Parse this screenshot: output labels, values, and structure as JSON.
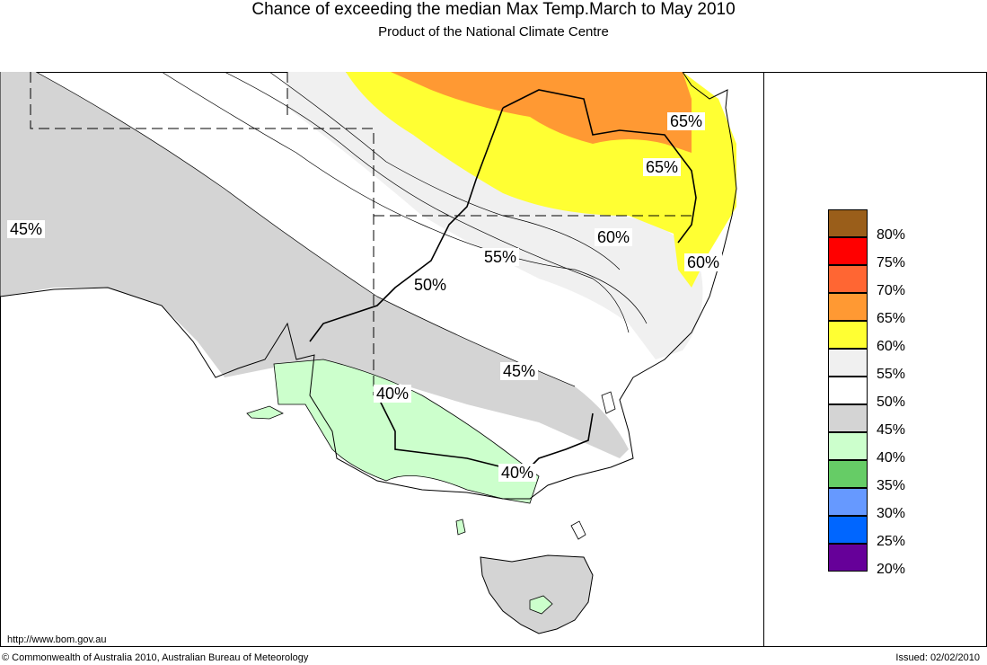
{
  "title": "Chance of exceeding the median Max Temp.March to May 2010",
  "subtitle": "Product of the National Climate Centre",
  "map_labels": [
    "45%",
    "55%",
    "50%",
    "60%",
    "60%",
    "65%",
    "65%",
    "45%",
    "40%",
    "40%"
  ],
  "legend": [
    {
      "label": "80%",
      "color": "#9a5e1a"
    },
    {
      "label": "75%",
      "color": "#ff0000"
    },
    {
      "label": "70%",
      "color": "#ff6633"
    },
    {
      "label": "65%",
      "color": "#ff9933"
    },
    {
      "label": "60%",
      "color": "#ffff33"
    },
    {
      "label": "55%",
      "color": "#f0f0f0"
    },
    {
      "label": "50%",
      "color": "#ffffff"
    },
    {
      "label": "45%",
      "color": "#d4d4d4"
    },
    {
      "label": "40%",
      "color": "#ccffcc"
    },
    {
      "label": "35%",
      "color": "#66cc66"
    },
    {
      "label": "30%",
      "color": "#6699ff"
    },
    {
      "label": "25%",
      "color": "#0066ff"
    },
    {
      "label": "20%",
      "color": "#660099"
    }
  ],
  "url": "http://www.bom.gov.au",
  "copyright": "© Commonwealth of Australia 2010, Australian Bureau of Meteorology",
  "issued": "Issued: 02/02/2010"
}
